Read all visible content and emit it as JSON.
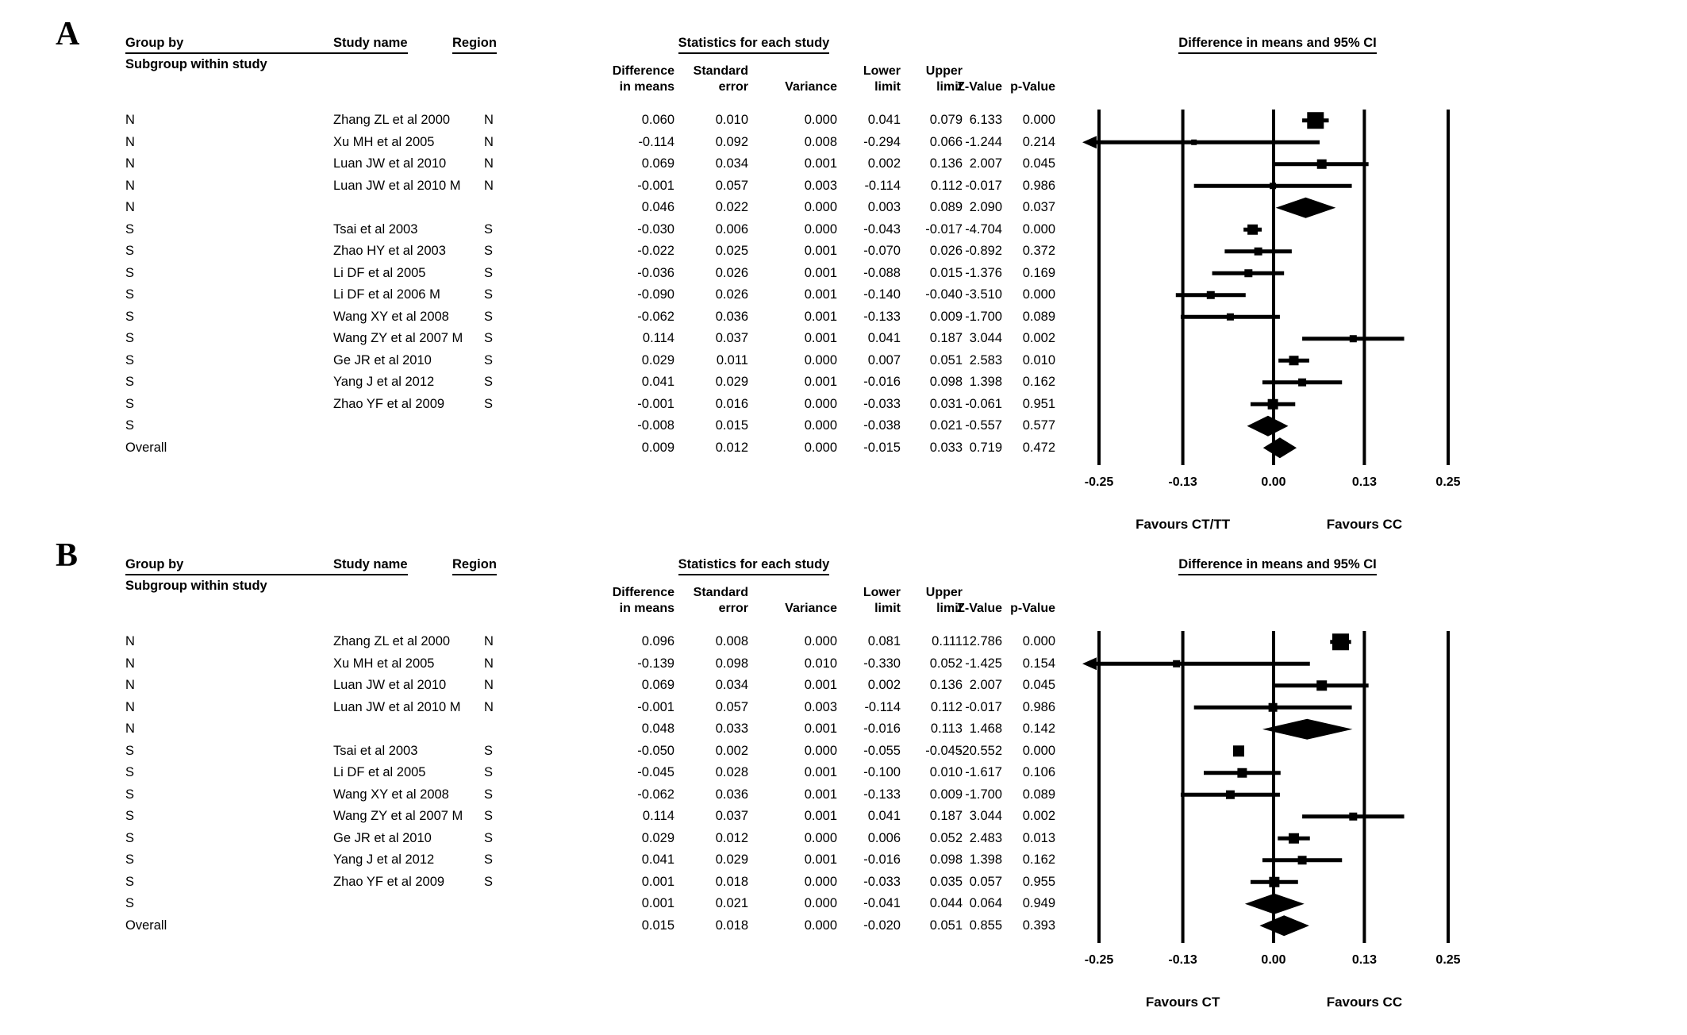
{
  "headers": {
    "group_by": "Group by",
    "subgroup": "Subgroup within study",
    "study_name": "Study name",
    "region": "Region",
    "diff_l1": "Difference",
    "diff_l2": "in means",
    "se_l1": "Standard",
    "se_l2": "error",
    "variance": "Variance",
    "lower_l1": "Lower",
    "lower_l2": "limit",
    "upper_l1": "Upper",
    "upper_l2": "limit",
    "z": "Z-Value",
    "p": "p-Value"
  },
  "chart_data": [
    {
      "type": "forest",
      "panel_label": "A",
      "stats_title": "Statistics for each study",
      "plot_title": "Difference in means and 95% CI",
      "xlim": [
        -0.25,
        0.25
      ],
      "tick_values": [
        -0.25,
        -0.13,
        0,
        0.13,
        0.25
      ],
      "tick_labels": [
        "-0.25",
        "-0.13",
        "0.00",
        "0.13",
        "0.25"
      ],
      "favours_left": "Favours CT/TT",
      "favours_right": "Favours CC",
      "rows": [
        {
          "group": "N",
          "study": "Zhang  ZL et al 2000",
          "region": "N",
          "diff": "0.060",
          "se": "0.010",
          "variance": "0.000",
          "lower": "0.041",
          "upper": "0.079",
          "z": "6.133",
          "p": "0.000",
          "kind": "study",
          "size": 21
        },
        {
          "group": "N",
          "study": "Xu MH et al 2005",
          "region": "N",
          "diff": "-0.114",
          "se": "0.092",
          "variance": "0.008",
          "lower": "-0.294",
          "upper": "0.066",
          "z": "-1.244",
          "p": "0.214",
          "kind": "study",
          "size": 7
        },
        {
          "group": "N",
          "study": "Luan JW et al 2010",
          "region": "N",
          "diff": "0.069",
          "se": "0.034",
          "variance": "0.001",
          "lower": "0.002",
          "upper": "0.136",
          "z": "2.007",
          "p": "0.045",
          "kind": "study",
          "size": 12
        },
        {
          "group": "N",
          "study": "Luan JW et al 2010 M",
          "region": "N",
          "diff": "-0.001",
          "se": "0.057",
          "variance": "0.003",
          "lower": "-0.114",
          "upper": "0.112",
          "z": "-0.017",
          "p": "0.986",
          "kind": "study",
          "size": 8
        },
        {
          "group": "N",
          "study": "",
          "region": "",
          "diff": "0.046",
          "se": "0.022",
          "variance": "0.000",
          "lower": "0.003",
          "upper": "0.089",
          "z": "2.090",
          "p": "0.037",
          "kind": "subtotal"
        },
        {
          "group": "S",
          "study": "Tsai et al 2003",
          "region": "S",
          "diff": "-0.030",
          "se": "0.006",
          "variance": "0.000",
          "lower": "-0.043",
          "upper": "-0.017",
          "z": "-4.704",
          "p": "0.000",
          "kind": "study",
          "size": 13
        },
        {
          "group": "S",
          "study": "Zhao HY et al 2003",
          "region": "S",
          "diff": "-0.022",
          "se": "0.025",
          "variance": "0.001",
          "lower": "-0.070",
          "upper": "0.026",
          "z": "-0.892",
          "p": "0.372",
          "kind": "study",
          "size": 10
        },
        {
          "group": "S",
          "study": "Li DF et al 2005",
          "region": "S",
          "diff": "-0.036",
          "se": "0.026",
          "variance": "0.001",
          "lower": "-0.088",
          "upper": "0.015",
          "z": "-1.376",
          "p": "0.169",
          "kind": "study",
          "size": 10
        },
        {
          "group": "S",
          "study": "Li DF et al 2006 M",
          "region": "S",
          "diff": "-0.090",
          "se": "0.026",
          "variance": "0.001",
          "lower": "-0.140",
          "upper": "-0.040",
          "z": "-3.510",
          "p": "0.000",
          "kind": "study",
          "size": 10
        },
        {
          "group": "S",
          "study": "Wang XY et al 2008",
          "region": "S",
          "diff": "-0.062",
          "se": "0.036",
          "variance": "0.001",
          "lower": "-0.133",
          "upper": "0.009",
          "z": "-1.700",
          "p": "0.089",
          "kind": "study",
          "size": 9
        },
        {
          "group": "S",
          "study": "Wang ZY et al 2007 M",
          "region": "S",
          "diff": "0.114",
          "se": "0.037",
          "variance": "0.001",
          "lower": "0.041",
          "upper": "0.187",
          "z": "3.044",
          "p": "0.002",
          "kind": "study",
          "size": 9
        },
        {
          "group": "S",
          "study": "Ge JR et al 2010",
          "region": "S",
          "diff": "0.029",
          "se": "0.011",
          "variance": "0.000",
          "lower": "0.007",
          "upper": "0.051",
          "z": "2.583",
          "p": "0.010",
          "kind": "study",
          "size": 12
        },
        {
          "group": "S",
          "study": "Yang J et al 2012",
          "region": "S",
          "diff": "0.041",
          "se": "0.029",
          "variance": "0.001",
          "lower": "-0.016",
          "upper": "0.098",
          "z": "1.398",
          "p": "0.162",
          "kind": "study",
          "size": 10
        },
        {
          "group": "S",
          "study": "Zhao YF et al 2009",
          "region": "S",
          "diff": "-0.001",
          "se": "0.016",
          "variance": "0.000",
          "lower": "-0.033",
          "upper": "0.031",
          "z": "-0.061",
          "p": "0.951",
          "kind": "study",
          "size": 13
        },
        {
          "group": "S",
          "study": "",
          "region": "",
          "diff": "-0.008",
          "se": "0.015",
          "variance": "0.000",
          "lower": "-0.038",
          "upper": "0.021",
          "z": "-0.557",
          "p": "0.577",
          "kind": "subtotal"
        },
        {
          "group": "Overall",
          "study": "",
          "region": "",
          "diff": "0.009",
          "se": "0.012",
          "variance": "0.000",
          "lower": "-0.015",
          "upper": "0.033",
          "z": "0.719",
          "p": "0.472",
          "kind": "overall"
        }
      ]
    },
    {
      "type": "forest",
      "panel_label": "B",
      "stats_title": "Statistics for each study",
      "plot_title": "Difference in means and 95% CI",
      "xlim": [
        -0.25,
        0.25
      ],
      "tick_values": [
        -0.25,
        -0.13,
        0,
        0.13,
        0.25
      ],
      "tick_labels": [
        "-0.25",
        "-0.13",
        "0.00",
        "0.13",
        "0.25"
      ],
      "favours_left": "Favours CT",
      "favours_right": "Favours CC",
      "rows": [
        {
          "group": "N",
          "study": "Zhang  ZL et al 2000",
          "region": "N",
          "diff": "0.096",
          "se": "0.008",
          "variance": "0.000",
          "lower": "0.081",
          "upper": "0.111",
          "z": "12.786",
          "p": "0.000",
          "kind": "study",
          "size": 21
        },
        {
          "group": "N",
          "study": "Xu MH et al 2005",
          "region": "N",
          "diff": "-0.139",
          "se": "0.098",
          "variance": "0.010",
          "lower": "-0.330",
          "upper": "0.052",
          "z": "-1.425",
          "p": "0.154",
          "kind": "study",
          "size": 9
        },
        {
          "group": "N",
          "study": "Luan JW et al 2010",
          "region": "N",
          "diff": "0.069",
          "se": "0.034",
          "variance": "0.001",
          "lower": "0.002",
          "upper": "0.136",
          "z": "2.007",
          "p": "0.045",
          "kind": "study",
          "size": 13
        },
        {
          "group": "N",
          "study": "Luan JW et al 2010 M",
          "region": "N",
          "diff": "-0.001",
          "se": "0.057",
          "variance": "0.003",
          "lower": "-0.114",
          "upper": "0.112",
          "z": "-0.017",
          "p": "0.986",
          "kind": "study",
          "size": 11
        },
        {
          "group": "N",
          "study": "",
          "region": "",
          "diff": "0.048",
          "se": "0.033",
          "variance": "0.001",
          "lower": "-0.016",
          "upper": "0.113",
          "z": "1.468",
          "p": "0.142",
          "kind": "subtotal"
        },
        {
          "group": "S",
          "study": "Tsai et al 2003",
          "region": "S",
          "diff": "-0.050",
          "se": "0.002",
          "variance": "0.000",
          "lower": "-0.055",
          "upper": "-0.045",
          "z": "-20.552",
          "p": "0.000",
          "kind": "study",
          "size": 14
        },
        {
          "group": "S",
          "study": "Li DF et al 2005",
          "region": "S",
          "diff": "-0.045",
          "se": "0.028",
          "variance": "0.001",
          "lower": "-0.100",
          "upper": "0.010",
          "z": "-1.617",
          "p": "0.106",
          "kind": "study",
          "size": 12
        },
        {
          "group": "S",
          "study": "Wang XY et al 2008",
          "region": "S",
          "diff": "-0.062",
          "se": "0.036",
          "variance": "0.001",
          "lower": "-0.133",
          "upper": "0.009",
          "z": "-1.700",
          "p": "0.089",
          "kind": "study",
          "size": 11
        },
        {
          "group": "S",
          "study": "Wang ZY et al 2007 M",
          "region": "S",
          "diff": "0.114",
          "se": "0.037",
          "variance": "0.001",
          "lower": "0.041",
          "upper": "0.187",
          "z": "3.044",
          "p": "0.002",
          "kind": "study",
          "size": 10
        },
        {
          "group": "S",
          "study": "Ge JR et al 2010",
          "region": "S",
          "diff": "0.029",
          "se": "0.012",
          "variance": "0.000",
          "lower": "0.006",
          "upper": "0.052",
          "z": "2.483",
          "p": "0.013",
          "kind": "study",
          "size": 13
        },
        {
          "group": "S",
          "study": "Yang J et al 2012",
          "region": "S",
          "diff": "0.041",
          "se": "0.029",
          "variance": "0.001",
          "lower": "-0.016",
          "upper": "0.098",
          "z": "1.398",
          "p": "0.162",
          "kind": "study",
          "size": 11
        },
        {
          "group": "S",
          "study": "Zhao YF et al 2009",
          "region": "S",
          "diff": "0.001",
          "se": "0.018",
          "variance": "0.000",
          "lower": "-0.033",
          "upper": "0.035",
          "z": "0.057",
          "p": "0.955",
          "kind": "study",
          "size": 13
        },
        {
          "group": "S",
          "study": "",
          "region": "",
          "diff": "0.001",
          "se": "0.021",
          "variance": "0.000",
          "lower": "-0.041",
          "upper": "0.044",
          "z": "0.064",
          "p": "0.949",
          "kind": "subtotal"
        },
        {
          "group": "Overall",
          "study": "",
          "region": "",
          "diff": "0.015",
          "se": "0.018",
          "variance": "0.000",
          "lower": "-0.020",
          "upper": "0.051",
          "z": "0.855",
          "p": "0.393",
          "kind": "overall"
        }
      ]
    }
  ]
}
